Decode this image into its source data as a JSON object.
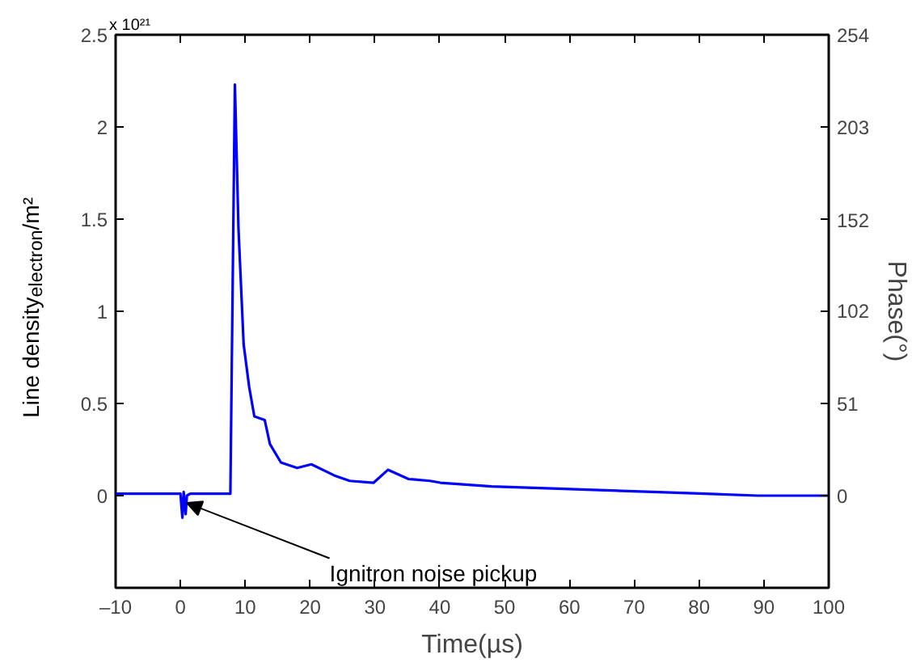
{
  "chart_data": {
    "type": "line",
    "xlabel": "Time(µs)",
    "ylabel": "Line density$_{electron}$/m²",
    "y2label": "Phase(°)",
    "annotations": [
      "x 10²¹",
      {
        "text": "Ignitron noise pickup",
        "x": 1,
        "y": -0.04
      }
    ],
    "xlim": [
      -10,
      100
    ],
    "xticks": [
      {
        "value": -10,
        "label": "–10"
      },
      0,
      10,
      20,
      30,
      40,
      50,
      60,
      70,
      80,
      90,
      100
    ],
    "ylim": [
      -0.5,
      2.5
    ],
    "yticks": [
      0,
      0.5,
      1,
      1.5,
      2,
      2.5
    ],
    "y2lim": [
      -50.8,
      254
    ],
    "y2ticks": [
      0,
      51,
      102,
      152,
      203,
      254
    ],
    "line_style": "solid",
    "series": [
      {
        "color": "#0000ff",
        "x": [
          -10,
          -5,
          0,
          0.3,
          0.5,
          0.8,
          1.0,
          1.5,
          4,
          7.5,
          7.7,
          8.4,
          8.95,
          9.75,
          10.6,
          11.4,
          13.0,
          13.8,
          15.5,
          18,
          20.2,
          23.7,
          26.1,
          29.8,
          32,
          35.2,
          38.5,
          40.1,
          48,
          56.4,
          64.6,
          72.8,
          81,
          89,
          100
        ],
        "values": [
          0.01,
          0.01,
          0.01,
          -0.12,
          0.02,
          -0.1,
          0.0,
          0.01,
          0.01,
          0.01,
          0.01,
          2.23,
          1.45,
          0.82,
          0.59,
          0.43,
          0.41,
          0.28,
          0.18,
          0.15,
          0.17,
          0.11,
          0.08,
          0.07,
          0.14,
          0.09,
          0.08,
          0.07,
          0.05,
          0.04,
          0.03,
          0.02,
          0.01,
          0.0,
          0.0
        ]
      }
    ]
  }
}
